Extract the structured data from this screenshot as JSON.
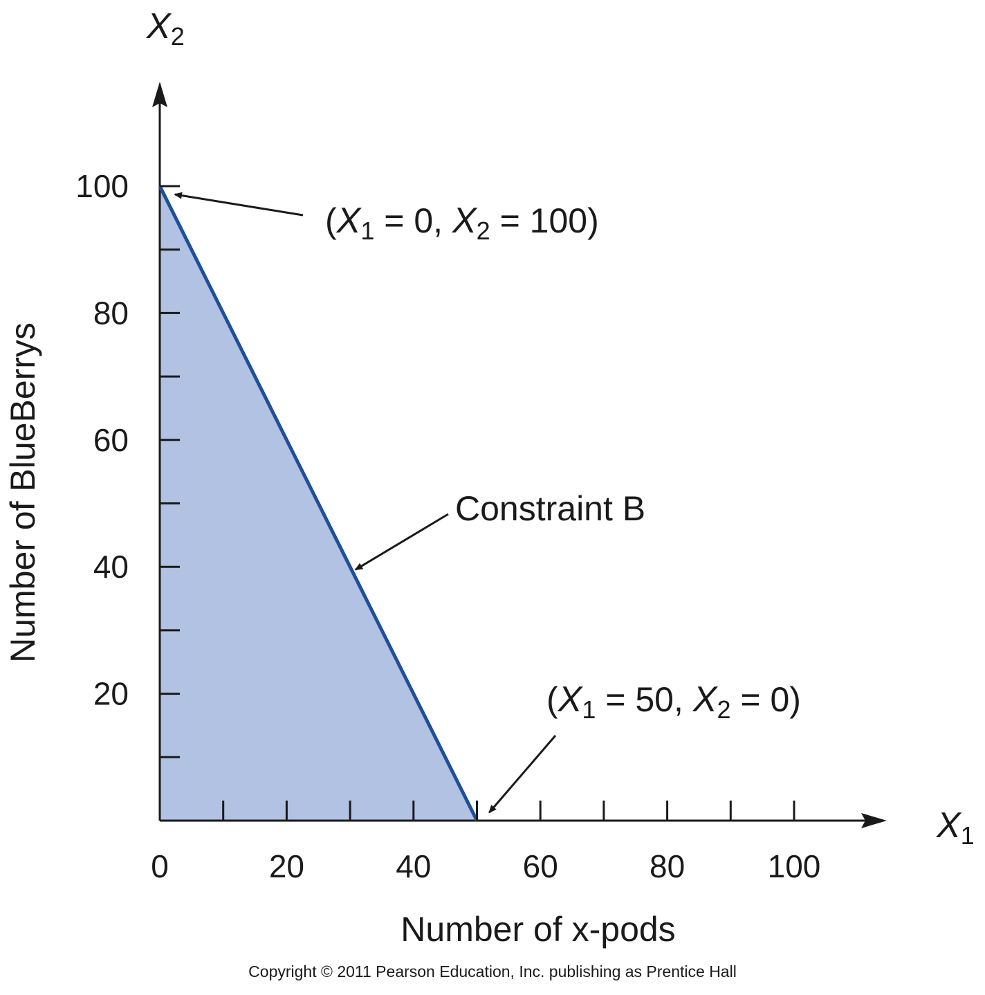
{
  "chart_data": {
    "type": "area",
    "title": "",
    "xlabel": "Number of x-pods",
    "ylabel": "Number of BlueBerrys",
    "x_axis_var": {
      "main": "X",
      "sub": "1"
    },
    "y_axis_var": {
      "main": "X",
      "sub": "2"
    },
    "xlim": [
      0,
      115
    ],
    "ylim": [
      0,
      115
    ],
    "x_major_ticks": [
      0,
      20,
      40,
      60,
      80,
      100
    ],
    "x_minor_ticks": [
      10,
      30,
      50,
      70,
      90
    ],
    "y_major_ticks": [
      20,
      40,
      60,
      80,
      100
    ],
    "y_minor_ticks": [
      10,
      30,
      50,
      70,
      90
    ],
    "x_tick_labels": [
      "0",
      "20",
      "40",
      "60",
      "80",
      "100"
    ],
    "y_tick_labels": [
      "20",
      "40",
      "60",
      "80",
      "100"
    ],
    "grid": false,
    "series": [
      {
        "name": "Constraint B",
        "x": [
          0,
          50
        ],
        "y": [
          100,
          0
        ],
        "line_color": "#1f4f9b",
        "fill_color": "#b1c2e2"
      }
    ],
    "feasible_region": [
      [
        0,
        0
      ],
      [
        0,
        100
      ],
      [
        50,
        0
      ]
    ],
    "annotations": [
      {
        "id": "top",
        "text_parts": [
          "(",
          "X",
          "1",
          " = 0, ",
          "X",
          "2",
          " = 100)"
        ],
        "point": [
          0,
          100
        ]
      },
      {
        "id": "constraint",
        "text": "Constraint B",
        "point": [
          30,
          40
        ]
      },
      {
        "id": "bottom",
        "text_parts": [
          "(",
          "X",
          "1",
          " = 50, ",
          "X",
          "2",
          " = 0)"
        ],
        "point": [
          50,
          0
        ]
      }
    ]
  },
  "footer": {
    "copyright": "Copyright © 2011 Pearson Education, Inc. publishing as Prentice Hall"
  }
}
